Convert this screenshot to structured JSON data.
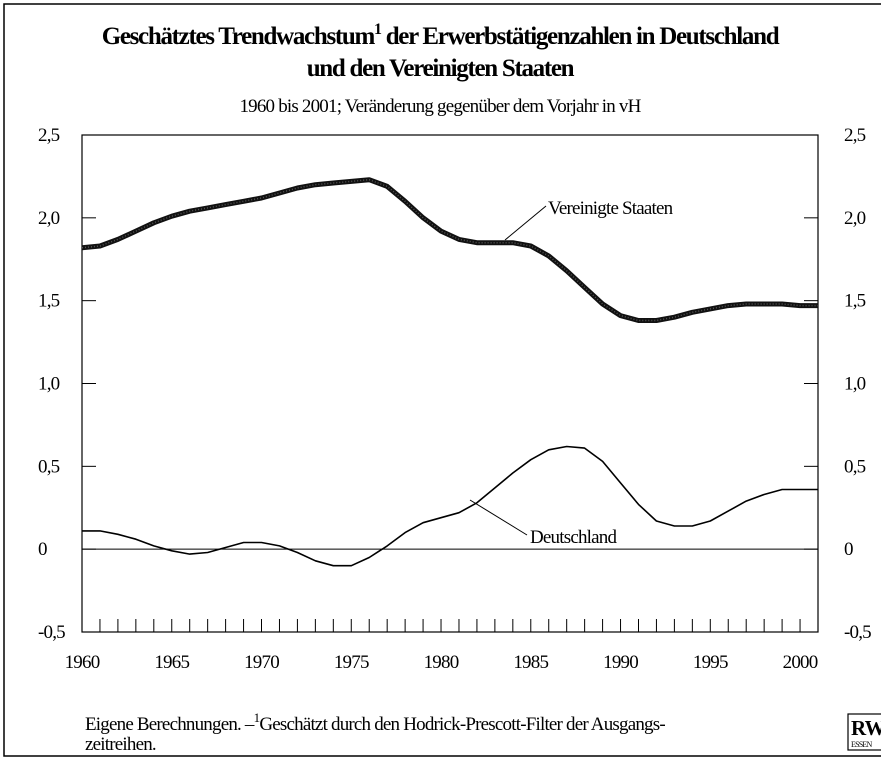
{
  "chart_data": {
    "type": "line",
    "title": {
      "line1": "Geschätztes Trendwachstum",
      "footnote_mark": "1",
      "line1_rest": " der Erwerbstätigenzahlen in Deutschland",
      "line2": "und den Vereinigten Staaten"
    },
    "subtitle": "1960 bis 2001; Veränderung gegenüber dem Vorjahr in vH",
    "x": [
      1960,
      1961,
      1962,
      1963,
      1964,
      1965,
      1966,
      1967,
      1968,
      1969,
      1970,
      1971,
      1972,
      1973,
      1974,
      1975,
      1976,
      1977,
      1978,
      1979,
      1980,
      1981,
      1982,
      1983,
      1984,
      1985,
      1986,
      1987,
      1988,
      1989,
      1990,
      1991,
      1992,
      1993,
      1994,
      1995,
      1996,
      1997,
      1998,
      1999,
      2000,
      2001
    ],
    "series": [
      {
        "name": "Vereinigte Staaten",
        "color": "#111111",
        "values": [
          1.82,
          1.83,
          1.87,
          1.92,
          1.97,
          2.01,
          2.04,
          2.06,
          2.08,
          2.1,
          2.12,
          2.15,
          2.18,
          2.2,
          2.21,
          2.22,
          2.23,
          2.19,
          2.1,
          2.0,
          1.92,
          1.87,
          1.85,
          1.85,
          1.85,
          1.83,
          1.77,
          1.68,
          1.58,
          1.48,
          1.41,
          1.38,
          1.38,
          1.4,
          1.43,
          1.45,
          1.47,
          1.48,
          1.48,
          1.48,
          1.47,
          1.47
        ]
      },
      {
        "name": "Deutschland",
        "color": "#000000",
        "values": [
          0.11,
          0.11,
          0.09,
          0.06,
          0.02,
          -0.01,
          -0.03,
          -0.02,
          0.01,
          0.04,
          0.04,
          0.02,
          -0.02,
          -0.07,
          -0.1,
          -0.1,
          -0.05,
          0.02,
          0.1,
          0.16,
          0.19,
          0.22,
          0.28,
          0.37,
          0.46,
          0.54,
          0.6,
          0.62,
          0.61,
          0.53,
          0.4,
          0.27,
          0.17,
          0.14,
          0.14,
          0.17,
          0.23,
          0.29,
          0.33,
          0.36,
          0.36,
          0.36
        ]
      }
    ],
    "xlim": [
      1960,
      2001
    ],
    "xticks": [
      1960,
      1965,
      1970,
      1975,
      1980,
      1985,
      1990,
      1995,
      2000
    ],
    "xminor_ticks": [
      1960,
      1961,
      1962,
      1963,
      1964,
      1965,
      1966,
      1967,
      1968,
      1969,
      1970,
      1971,
      1972,
      1973,
      1974,
      1975,
      1976,
      1977,
      1978,
      1979,
      1980,
      1981,
      1982,
      1983,
      1984,
      1985,
      1986,
      1987,
      1988,
      1989,
      1990,
      1991,
      1992,
      1993,
      1994,
      1995,
      1996,
      1997,
      1998,
      1999,
      2000,
      2001
    ],
    "ylim": [
      -0.5,
      2.5
    ],
    "yticks": [
      {
        "value": -0.5,
        "label": "-0,5"
      },
      0,
      {
        "value": 0.5,
        "label": "0,5"
      },
      {
        "value": 1.0,
        "label": "1,0"
      },
      {
        "value": 1.5,
        "label": "1,5"
      },
      {
        "value": 2.0,
        "label": "2,0"
      },
      {
        "value": 2.5,
        "label": "2,5"
      }
    ],
    "footnote": {
      "line1_start": "Eigene Berechnungen. –",
      "line1_rest": "Geschätzt durch den Hodrick-Prescott-Filter der Ausgangs-",
      "line2": "zeitreihen."
    },
    "logo": {
      "name": "RWI",
      "city": "ESSEN"
    }
  }
}
